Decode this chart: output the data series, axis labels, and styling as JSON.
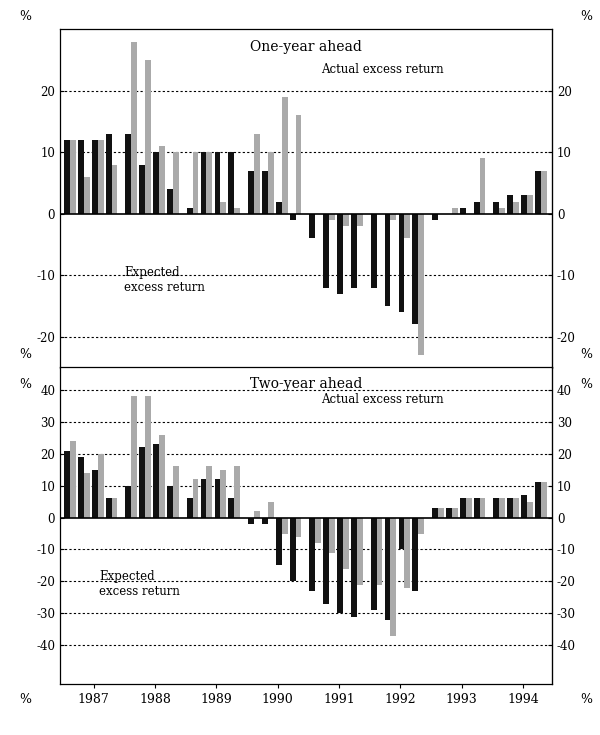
{
  "title1": "One-year ahead",
  "title2": "Two-year ahead",
  "color_actual": "#aaaaaa",
  "color_expected": "#111111",
  "ylim1": [
    -25,
    30
  ],
  "yticks1": [
    -20,
    -10,
    0,
    10,
    20
  ],
  "ylim2": [
    -52,
    47
  ],
  "yticks2": [
    -40,
    -30,
    -20,
    -10,
    0,
    10,
    20,
    30,
    40
  ],
  "years": [
    1987,
    1988,
    1989,
    1990,
    1991,
    1992,
    1993,
    1994
  ],
  "panel1_expected": [
    12,
    12,
    12,
    13,
    13,
    8,
    10,
    4,
    1,
    10,
    10,
    10,
    7,
    7,
    2,
    -1,
    -4,
    -12,
    -13,
    -12,
    -12,
    -15,
    -16,
    -18,
    -1,
    0,
    1,
    2,
    2,
    3,
    3,
    7
  ],
  "panel1_actual": [
    12,
    6,
    12,
    8,
    28,
    25,
    11,
    10,
    10,
    10,
    2,
    1,
    13,
    10,
    19,
    16,
    0,
    -1,
    -2,
    -2,
    0,
    -1,
    -4,
    -23,
    0,
    1,
    0,
    9,
    1,
    2,
    3,
    7
  ],
  "panel2_expected": [
    21,
    19,
    15,
    6,
    10,
    22,
    23,
    10,
    6,
    12,
    12,
    6,
    -2,
    -2,
    -15,
    -20,
    -23,
    -27,
    -30,
    -31,
    -29,
    -32,
    -10,
    -23,
    3,
    3,
    6,
    6,
    6,
    6,
    7,
    11
  ],
  "panel2_actual": [
    24,
    14,
    20,
    6,
    38,
    38,
    26,
    16,
    12,
    16,
    15,
    16,
    2,
    5,
    -5,
    -6,
    -8,
    -11,
    -16,
    -21,
    -21,
    -37,
    -22,
    -5,
    3,
    3,
    6,
    6,
    6,
    6,
    5,
    11
  ]
}
